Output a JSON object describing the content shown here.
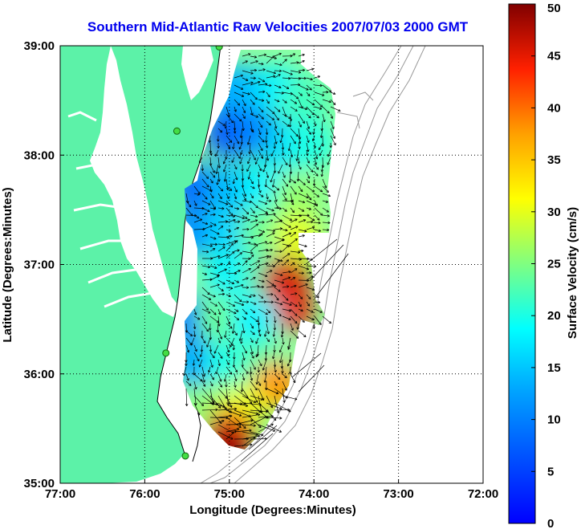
{
  "chart_data": {
    "type": "heatmap",
    "title": "Southern Mid-Atlantic Raw Velocities 2007/07/03 2000 GMT",
    "xlabel": "Longitude (Degrees:Minutes)",
    "ylabel": "Latitude (Degrees:Minutes)",
    "x_ticks": [
      "77:00",
      "76:00",
      "75:00",
      "74:00",
      "73:00",
      "72:00"
    ],
    "y_ticks": [
      "39:00",
      "38:00",
      "37:00",
      "36:00",
      "35:00"
    ],
    "xlim": [
      -77,
      -72
    ],
    "ylim": [
      35,
      39
    ],
    "grid": true,
    "colorbar": {
      "label": "Surface Velocity (cm/s)",
      "ticks": [
        "0",
        "5",
        "10",
        "15",
        "20",
        "25",
        "30",
        "35",
        "40",
        "45",
        "50"
      ],
      "range": [
        0,
        50
      ],
      "colormap": "jet"
    },
    "colors": {
      "title": "#0000ee",
      "land": "#5cf2a8",
      "stations": "#44dd44",
      "vectors": "#000000"
    },
    "stations": [
      {
        "lon": -75.12,
        "lat": 38.99
      },
      {
        "lon": -75.62,
        "lat": 38.22
      },
      {
        "lon": -75.75,
        "lat": 36.19
      },
      {
        "lon": -75.52,
        "lat": 35.25
      }
    ],
    "velocity_patches": [
      {
        "lon": -75.0,
        "lat": 38.6,
        "speed": 12
      },
      {
        "lon": -74.8,
        "lat": 38.6,
        "speed": 14
      },
      {
        "lon": -74.4,
        "lat": 38.6,
        "speed": 18
      },
      {
        "lon": -74.1,
        "lat": 38.5,
        "speed": 22
      },
      {
        "lon": -75.0,
        "lat": 38.2,
        "speed": 6
      },
      {
        "lon": -74.7,
        "lat": 38.2,
        "speed": 10
      },
      {
        "lon": -74.3,
        "lat": 38.1,
        "speed": 16
      },
      {
        "lon": -74.05,
        "lat": 38.1,
        "speed": 20
      },
      {
        "lon": -75.4,
        "lat": 37.7,
        "speed": 8
      },
      {
        "lon": -75.0,
        "lat": 37.7,
        "speed": 14
      },
      {
        "lon": -74.6,
        "lat": 37.7,
        "speed": 18
      },
      {
        "lon": -74.2,
        "lat": 37.6,
        "speed": 26
      },
      {
        "lon": -75.4,
        "lat": 37.3,
        "speed": 11
      },
      {
        "lon": -75.0,
        "lat": 37.3,
        "speed": 16
      },
      {
        "lon": -74.6,
        "lat": 37.3,
        "speed": 24
      },
      {
        "lon": -74.2,
        "lat": 37.25,
        "speed": 30
      },
      {
        "lon": -75.0,
        "lat": 36.9,
        "speed": 18
      },
      {
        "lon": -74.6,
        "lat": 36.9,
        "speed": 22
      },
      {
        "lon": -74.35,
        "lat": 36.85,
        "speed": 46
      },
      {
        "lon": -74.3,
        "lat": 36.6,
        "speed": 45
      },
      {
        "lon": -75.5,
        "lat": 36.5,
        "speed": 10
      },
      {
        "lon": -75.1,
        "lat": 36.5,
        "speed": 24
      },
      {
        "lon": -74.7,
        "lat": 36.5,
        "speed": 18
      },
      {
        "lon": -75.4,
        "lat": 36.1,
        "speed": 13
      },
      {
        "lon": -75.0,
        "lat": 36.1,
        "speed": 20
      },
      {
        "lon": -74.6,
        "lat": 36.1,
        "speed": 23
      },
      {
        "lon": -74.45,
        "lat": 35.9,
        "speed": 38
      },
      {
        "lon": -75.2,
        "lat": 35.7,
        "speed": 26
      },
      {
        "lon": -74.85,
        "lat": 35.7,
        "speed": 30
      },
      {
        "lon": -75.0,
        "lat": 35.45,
        "speed": 44
      },
      {
        "lon": -75.05,
        "lat": 35.3,
        "speed": 49
      }
    ]
  }
}
